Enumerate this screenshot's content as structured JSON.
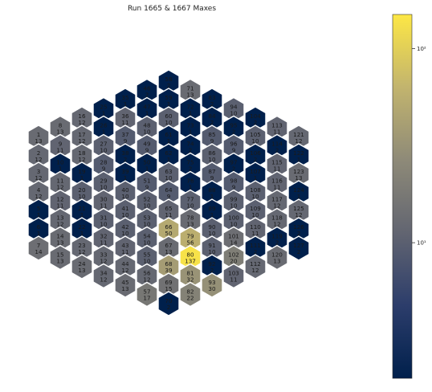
{
  "chart_data": {
    "type": "heatmap",
    "title": "Run 1665 & 1667 Maxes",
    "colormap": "cividis",
    "scale": "log",
    "colorbar": {
      "range": [
        2,
        150
      ],
      "ticks": [
        {
          "value": 10,
          "label": "10¹"
        },
        {
          "value": 100,
          "label": "10²"
        }
      ]
    },
    "columns": [
      [
        {
          "id": "1",
          "count": 13
        },
        {
          "id": "2",
          "count": 12
        },
        {
          "id": "3",
          "count": 12
        },
        {
          "id": "4",
          "count": 12
        },
        {
          "id": "5",
          "count": 1
        },
        {
          "id": "6",
          "count": 1
        },
        {
          "id": "7",
          "count": 14
        }
      ],
      [
        {
          "id": "8",
          "count": 13
        },
        {
          "id": "9",
          "count": 11
        },
        {
          "id": "10",
          "count": 1
        },
        {
          "id": "11",
          "count": 12
        },
        {
          "id": "12",
          "count": 11
        },
        {
          "id": "13",
          "count": 12
        },
        {
          "id": "14",
          "count": 13
        },
        {
          "id": "15",
          "count": 13
        }
      ],
      [
        {
          "id": "16",
          "count": 12
        },
        {
          "id": "17",
          "count": 12
        },
        {
          "id": "18",
          "count": 12
        },
        {
          "id": "19",
          "count": 1
        },
        {
          "id": "20",
          "count": 10
        },
        {
          "id": "21",
          "count": 1
        },
        {
          "id": "22",
          "count": 1
        },
        {
          "id": "23",
          "count": 12
        },
        {
          "id": "24",
          "count": 13
        }
      ],
      [
        {
          "id": "25",
          "count": 1
        },
        {
          "id": "26",
          "count": 1
        },
        {
          "id": "27",
          "count": 10
        },
        {
          "id": "28",
          "count": 9
        },
        {
          "id": "29",
          "count": 10
        },
        {
          "id": "30",
          "count": 11
        },
        {
          "id": "31",
          "count": 10
        },
        {
          "id": "32",
          "count": 11
        },
        {
          "id": "33",
          "count": 12
        },
        {
          "id": "34",
          "count": 12
        }
      ],
      [
        {
          "id": "35",
          "count": 1
        },
        {
          "id": "36",
          "count": 11
        },
        {
          "id": "37",
          "count": 9
        },
        {
          "id": "38",
          "count": 2
        },
        {
          "id": "39",
          "count": 1
        },
        {
          "id": "40",
          "count": 10
        },
        {
          "id": "41",
          "count": 10
        },
        {
          "id": "42",
          "count": 10
        },
        {
          "id": "43",
          "count": 11
        },
        {
          "id": "44",
          "count": 12
        },
        {
          "id": "45",
          "count": 13
        }
      ],
      [
        {
          "id": "46",
          "count": 2
        },
        {
          "id": "47",
          "count": 1
        },
        {
          "id": "48",
          "count": 10
        },
        {
          "id": "49",
          "count": 9
        },
        {
          "id": "50",
          "count": 1
        },
        {
          "id": "51",
          "count": 9
        },
        {
          "id": "52",
          "count": 10
        },
        {
          "id": "53",
          "count": 10
        },
        {
          "id": "54",
          "count": 10
        },
        {
          "id": "55",
          "count": 10
        },
        {
          "id": "56",
          "count": 12
        },
        {
          "id": "57",
          "count": 17
        }
      ],
      [
        {
          "id": "58",
          "count": 2
        },
        {
          "id": "59",
          "count": 1
        },
        {
          "id": "60",
          "count": 10
        },
        {
          "id": "61",
          "count": 1
        },
        {
          "id": "62",
          "count": 1
        },
        {
          "id": "63",
          "count": 10
        },
        {
          "id": "64",
          "count": 9
        },
        {
          "id": "65",
          "count": 11
        },
        {
          "id": "66",
          "count": 50
        },
        {
          "id": "67",
          "count": 13
        },
        {
          "id": "68",
          "count": 39
        },
        {
          "id": "69",
          "count": 15
        },
        {
          "id": "70",
          "count": 2
        }
      ],
      [
        {
          "id": "71",
          "count": 13
        },
        {
          "id": "72",
          "count": 1
        },
        {
          "id": "73",
          "count": 1
        },
        {
          "id": "74",
          "count": 2
        },
        {
          "id": "75",
          "count": 2
        },
        {
          "id": "76",
          "count": 1
        },
        {
          "id": "77",
          "count": 10
        },
        {
          "id": "78",
          "count": 13
        },
        {
          "id": "79",
          "count": 56
        },
        {
          "id": "80",
          "count": 137
        },
        {
          "id": "81",
          "count": 32
        },
        {
          "id": "82",
          "count": 22
        }
      ],
      [
        {
          "id": "83",
          "count": 2
        },
        {
          "id": "84",
          "count": 2
        },
        {
          "id": "85",
          "count": 9
        },
        {
          "id": "86",
          "count": 10
        },
        {
          "id": "87",
          "count": 9
        },
        {
          "id": "88",
          "count": 1
        },
        {
          "id": "89",
          "count": 1
        },
        {
          "id": "90",
          "count": 10
        },
        {
          "id": "91",
          "count": 10
        },
        {
          "id": "92",
          "count": 2
        },
        {
          "id": "93",
          "count": 30
        }
      ],
      [
        {
          "id": "94",
          "count": 10
        },
        {
          "id": "95",
          "count": 2
        },
        {
          "id": "96",
          "count": 9
        },
        {
          "id": "97",
          "count": 2
        },
        {
          "id": "98",
          "count": 9
        },
        {
          "id": "99",
          "count": 10
        },
        {
          "id": "100",
          "count": 10
        },
        {
          "id": "101",
          "count": 14
        },
        {
          "id": "102",
          "count": 20
        },
        {
          "id": "103",
          "count": 11
        }
      ],
      [
        {
          "id": "104",
          "count": 2
        },
        {
          "id": "105",
          "count": 10
        },
        {
          "id": "106",
          "count": 2
        },
        {
          "id": "107",
          "count": 1
        },
        {
          "id": "108",
          "count": 10
        },
        {
          "id": "109",
          "count": 10
        },
        {
          "id": "110",
          "count": 11
        },
        {
          "id": "111",
          "count": 2
        },
        {
          "id": "112",
          "count": 12
        }
      ],
      [
        {
          "id": "113",
          "count": 11
        },
        {
          "id": "114",
          "count": 2
        },
        {
          "id": "115",
          "count": 11
        },
        {
          "id": "116",
          "count": 11
        },
        {
          "id": "117",
          "count": 12
        },
        {
          "id": "118",
          "count": 12
        },
        {
          "id": "119",
          "count": 2
        },
        {
          "id": "120",
          "count": 13
        }
      ],
      [
        {
          "id": "121",
          "count": 12
        },
        {
          "id": "122",
          "count": 1
        },
        {
          "id": "123",
          "count": 13
        },
        {
          "id": "124",
          "count": 1
        },
        {
          "id": "125",
          "count": 12
        },
        {
          "id": "126",
          "count": 2
        },
        {
          "id": "127",
          "count": 2
        }
      ]
    ]
  }
}
